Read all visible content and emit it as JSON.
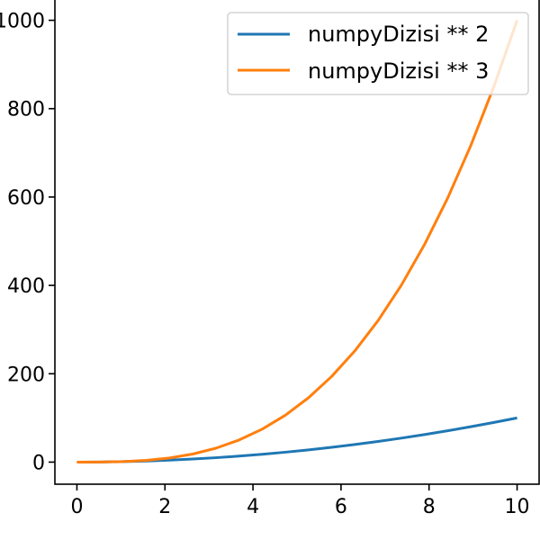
{
  "chart_data": {
    "type": "line",
    "title": "",
    "xlabel": "",
    "ylabel": "",
    "xlim": [
      -0.5,
      10.5
    ],
    "ylim": [
      -50,
      1050
    ],
    "grid": false,
    "legend_position": "top-right",
    "x_ticks": [
      0,
      2,
      4,
      6,
      8,
      10
    ],
    "x_tick_labels": [
      "0",
      "2",
      "4",
      "6",
      "8",
      "10"
    ],
    "y_ticks": [
      0,
      200,
      400,
      600,
      800,
      1000
    ],
    "y_tick_labels": [
      "0",
      "200",
      "400",
      "600",
      "800",
      "1000"
    ],
    "x": [
      0,
      0.5263,
      1.0526,
      1.5789,
      2.1053,
      2.6316,
      3.1579,
      3.6842,
      4.2105,
      4.7368,
      5.2632,
      5.7895,
      6.3158,
      6.8421,
      7.3684,
      7.8947,
      8.4211,
      8.9474,
      9.4737,
      10
    ],
    "series": [
      {
        "name": "numpyDizisi ** 2",
        "color": "#1f77b4",
        "values": [
          0,
          0.28,
          1.11,
          2.49,
          4.43,
          6.93,
          9.97,
          13.57,
          17.73,
          22.44,
          27.7,
          33.52,
          39.89,
          46.81,
          54.29,
          62.33,
          70.91,
          80.06,
          89.75,
          100
        ]
      },
      {
        "name": "numpyDizisi ** 3",
        "color": "#ff7f0e",
        "values": [
          0,
          0.15,
          1.17,
          3.94,
          9.33,
          18.22,
          31.49,
          50.01,
          74.65,
          106.28,
          145.79,
          194.06,
          251.93,
          320.31,
          400.06,
          492.05,
          597.17,
          716.28,
          850.27,
          1000
        ]
      }
    ]
  }
}
